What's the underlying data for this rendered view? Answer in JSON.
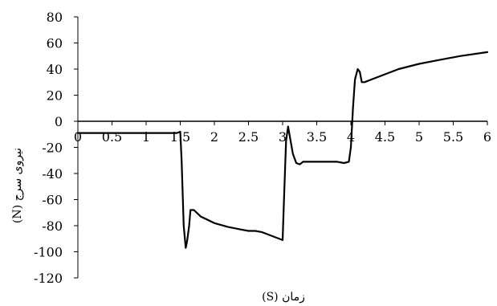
{
  "chart_data": {
    "type": "line",
    "title": "",
    "xlabel": "زمان (S)",
    "ylabel": "نیروی سرج (N)",
    "xlim": [
      0,
      6
    ],
    "ylim": [
      -120,
      80
    ],
    "x_ticks": [
      0,
      0.5,
      1,
      1.5,
      2,
      2.5,
      3,
      3.5,
      4,
      4.5,
      5,
      5.5,
      6
    ],
    "x_tick_labels": [
      "0",
      "0.5",
      "1",
      "1.5",
      "2",
      "2.5",
      "3",
      "3.5",
      "4",
      "4.5",
      "5",
      "5.5",
      "6"
    ],
    "y_ticks": [
      80,
      60,
      40,
      20,
      0,
      -20,
      -40,
      -60,
      -80,
      -100,
      -120
    ],
    "y_tick_labels": [
      "80",
      "60",
      "40",
      "20",
      "0",
      "-20",
      "-40",
      "-60",
      "-80",
      "-100",
      "-120"
    ],
    "grid": false,
    "legend": "none",
    "line_color": "#000000",
    "series": [
      {
        "x": [
          0,
          0.5,
          1,
          1.45,
          1.5,
          1.52,
          1.55,
          1.58,
          1.6,
          1.63,
          1.65,
          1.7,
          1.8,
          2,
          2.2,
          2.4,
          2.5,
          2.6,
          2.7,
          2.8,
          2.9,
          3.0,
          3.02,
          3.05,
          3.08,
          3.1,
          3.15,
          3.2,
          3.25,
          3.3,
          3.4,
          3.5,
          3.6,
          3.7,
          3.8,
          3.9,
          3.97,
          4.0,
          4.03,
          4.06,
          4.1,
          4.13,
          4.16,
          4.2,
          4.3,
          4.5,
          4.7,
          5,
          5.3,
          5.6,
          6
        ],
        "y": [
          -9,
          -9,
          -9,
          -9,
          -8,
          -30,
          -80,
          -97,
          -92,
          -80,
          -68,
          -68,
          -73,
          -78,
          -81,
          -83,
          -84,
          -84,
          -85,
          -87,
          -89,
          -91,
          -60,
          -15,
          -4,
          -10,
          -25,
          -32,
          -33,
          -31,
          -31,
          -31,
          -31,
          -31,
          -31,
          -32,
          -31,
          -20,
          10,
          32,
          40,
          38,
          30,
          30,
          32,
          36,
          40,
          44,
          47,
          50,
          53
        ]
      }
    ]
  }
}
